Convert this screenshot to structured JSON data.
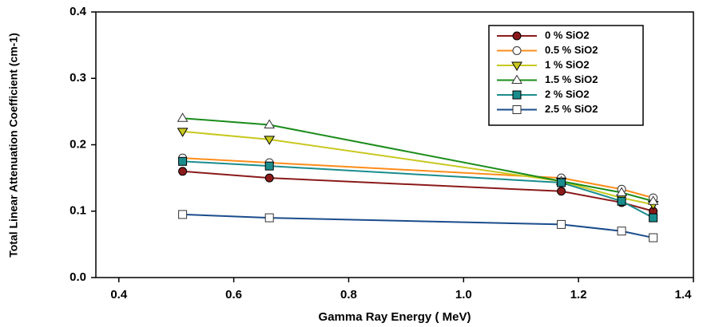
{
  "chart_data": {
    "type": "line",
    "xlabel": "Gamma Ray Energy ( MeV)",
    "ylabel": "Total Linear Attenuation Coefficient (cm-1)",
    "x": [
      0.511,
      0.662,
      1.17,
      1.275,
      1.33
    ],
    "xlim": [
      0.36,
      1.4
    ],
    "ylim": [
      0,
      0.4
    ],
    "xticks": [
      0.4,
      0.6,
      0.8,
      {
        "value": 1,
        "label": "1.0"
      },
      1.2,
      1.4
    ],
    "yticks": [
      {
        "value": 0,
        "label": "0.0"
      },
      0.1,
      0.2,
      0.3,
      0.4
    ],
    "legend": "upper right",
    "series": [
      {
        "name": "0 % SiO2",
        "color": "#8b1a1a",
        "marker": "circle-filled",
        "values": [
          0.16,
          0.15,
          0.13,
          0.113,
          0.1
        ]
      },
      {
        "name": "0.5 % SiO2",
        "color": "#ff8c1a",
        "marker": "circle-open",
        "values": [
          0.18,
          0.173,
          0.15,
          0.133,
          0.12
        ]
      },
      {
        "name": "1 % SiO2",
        "color": "#c8c820",
        "marker": "triangle-down-filled",
        "values": [
          0.22,
          0.208,
          0.145,
          0.12,
          0.11
        ]
      },
      {
        "name": "1.5 % SiO2",
        "color": "#1a8c1a",
        "marker": "triangle-up-open",
        "values": [
          0.24,
          0.23,
          0.145,
          0.128,
          0.115
        ]
      },
      {
        "name": "2 % SiO2",
        "color": "#1a8c8c",
        "marker": "square-filled",
        "values": [
          0.175,
          0.168,
          0.143,
          0.115,
          0.09
        ]
      },
      {
        "name": "2.5 % SiO2",
        "color": "#1a4c8c",
        "marker": "square-open",
        "values": [
          0.095,
          0.09,
          0.08,
          0.07,
          0.06
        ]
      }
    ]
  }
}
